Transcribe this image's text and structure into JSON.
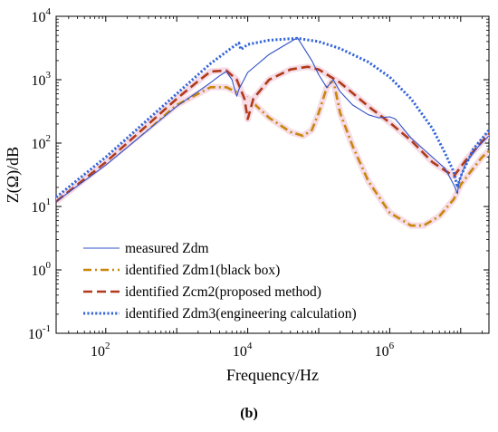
{
  "chart_data": {
    "type": "line",
    "xlabel": "Frequency/Hz",
    "ylabel": "Z(Ω)/dB",
    "x_scale": "log",
    "y_scale": "log",
    "xlim": [
      20,
      25000000
    ],
    "ylim": [
      0.1,
      10000
    ],
    "x_ticks": [
      {
        "base": "10",
        "exp": "2",
        "value": 100
      },
      {
        "base": "10",
        "exp": "4",
        "value": 10000
      },
      {
        "base": "10",
        "exp": "6",
        "value": 1000000
      }
    ],
    "y_ticks": [
      {
        "base": "10",
        "exp": "-1",
        "value": 0.1
      },
      {
        "base": "10",
        "exp": "0",
        "value": 1
      },
      {
        "base": "10",
        "exp": "1",
        "value": 10
      },
      {
        "base": "10",
        "exp": "2",
        "value": 100
      },
      {
        "base": "10",
        "exp": "3",
        "value": 1000
      },
      {
        "base": "10",
        "exp": "4",
        "value": 10000
      }
    ],
    "grid": false,
    "legend_position": "bottom-left",
    "panel_label": "(b)",
    "series": [
      {
        "name": "measured Zdm",
        "style": "solid",
        "color": "#3050c8",
        "points": [
          [
            20,
            12
          ],
          [
            100,
            45
          ],
          [
            1000,
            380
          ],
          [
            2000,
            650
          ],
          [
            3000,
            900
          ],
          [
            4000,
            1150
          ],
          [
            5000,
            1350
          ],
          [
            6000,
            1000
          ],
          [
            7000,
            550
          ],
          [
            7500,
            700
          ],
          [
            10000,
            1300
          ],
          [
            20000,
            2500
          ],
          [
            50000,
            4600
          ],
          [
            80000,
            2000
          ],
          [
            100000,
            1200
          ],
          [
            130000,
            750
          ],
          [
            160000,
            1000
          ],
          [
            200000,
            650
          ],
          [
            300000,
            400
          ],
          [
            500000,
            280
          ],
          [
            700000,
            250
          ],
          [
            1000000,
            260
          ],
          [
            1200000,
            240
          ],
          [
            2000000,
            120
          ],
          [
            4000000,
            60
          ],
          [
            6000000,
            40
          ],
          [
            8000000,
            22
          ],
          [
            9000000,
            16
          ],
          [
            9500000,
            25
          ],
          [
            12000000,
            50
          ],
          [
            18000000,
            90
          ],
          [
            25000000,
            130
          ]
        ]
      },
      {
        "name": "identified Zdm1(black box)",
        "style": "dashdot",
        "color": "#c8860a",
        "points": [
          [
            20,
            12
          ],
          [
            100,
            50
          ],
          [
            1000,
            400
          ],
          [
            3000,
            760
          ],
          [
            5000,
            760
          ],
          [
            10000,
            520
          ],
          [
            20000,
            250
          ],
          [
            40000,
            150
          ],
          [
            60000,
            130
          ],
          [
            80000,
            160
          ],
          [
            100000,
            300
          ],
          [
            130000,
            750
          ],
          [
            160000,
            1000
          ],
          [
            200000,
            300
          ],
          [
            300000,
            90
          ],
          [
            500000,
            25
          ],
          [
            1000000,
            8
          ],
          [
            2000000,
            5
          ],
          [
            3000000,
            5
          ],
          [
            5000000,
            7
          ],
          [
            8000000,
            13
          ],
          [
            10000000,
            22
          ],
          [
            15000000,
            40
          ],
          [
            20000000,
            60
          ],
          [
            25000000,
            75
          ]
        ]
      },
      {
        "name": "identified Zcm2(proposed method)",
        "style": "dashed",
        "color": "#b03a1a",
        "points": [
          [
            20,
            12
          ],
          [
            100,
            50
          ],
          [
            1000,
            500
          ],
          [
            2000,
            950
          ],
          [
            3000,
            1350
          ],
          [
            5000,
            1400
          ],
          [
            7000,
            1000
          ],
          [
            9000,
            500
          ],
          [
            10000,
            240
          ],
          [
            12000,
            500
          ],
          [
            20000,
            1000
          ],
          [
            40000,
            1450
          ],
          [
            70000,
            1600
          ],
          [
            100000,
            1450
          ],
          [
            200000,
            900
          ],
          [
            500000,
            380
          ],
          [
            1000000,
            210
          ],
          [
            2000000,
            110
          ],
          [
            4000000,
            50
          ],
          [
            8000000,
            30
          ],
          [
            12000000,
            55
          ],
          [
            25000000,
            140
          ]
        ]
      },
      {
        "name": "identified Zdm3(engineering calculation)",
        "style": "dotted",
        "color": "#3566d8",
        "points": [
          [
            20,
            14
          ],
          [
            100,
            60
          ],
          [
            1000,
            600
          ],
          [
            3000,
            1800
          ],
          [
            6000,
            3200
          ],
          [
            7500,
            3800
          ],
          [
            8000,
            3000
          ],
          [
            10000,
            3600
          ],
          [
            20000,
            4200
          ],
          [
            50000,
            4500
          ],
          [
            100000,
            4000
          ],
          [
            200000,
            3100
          ],
          [
            500000,
            1900
          ],
          [
            1000000,
            1100
          ],
          [
            2000000,
            500
          ],
          [
            4000000,
            170
          ],
          [
            6000000,
            70
          ],
          [
            8000000,
            35
          ],
          [
            9000000,
            20
          ],
          [
            10000000,
            30
          ],
          [
            15000000,
            80
          ],
          [
            25000000,
            160
          ]
        ]
      }
    ]
  }
}
